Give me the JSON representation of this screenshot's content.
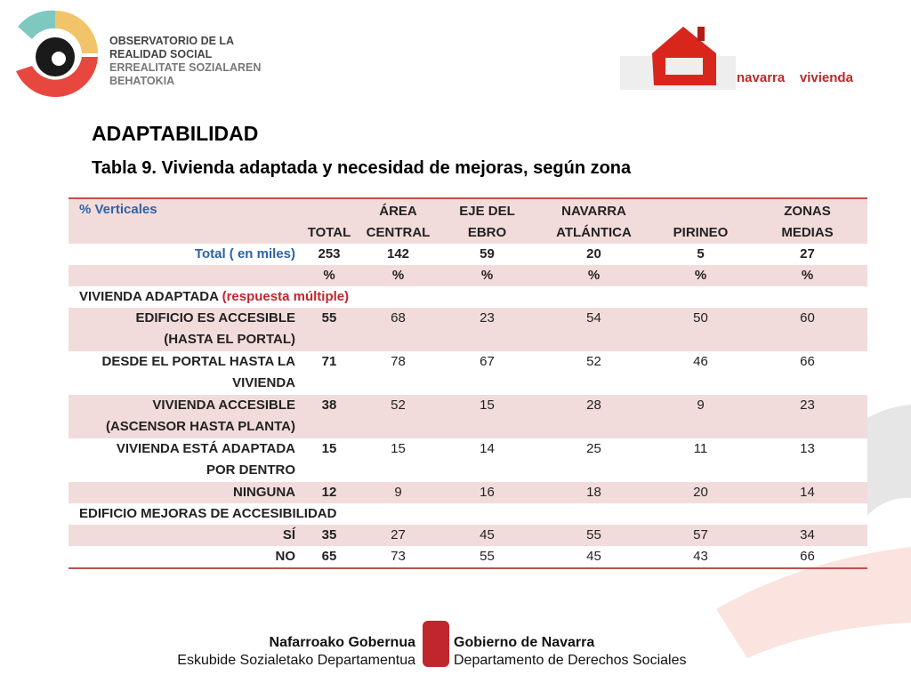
{
  "header": {
    "org_lines": [
      "OBSERVATORIO DE LA",
      "REALIDAD SOCIAL",
      "ERREALITATE SOZIALAREN",
      "BEHATOKIA"
    ],
    "brand": [
      "navarra",
      "vivienda"
    ]
  },
  "section_title": "ADAPTABILIDAD",
  "table_title": "Tabla 9. Vivienda adaptada y necesidad de mejoras, según zona",
  "table": {
    "header": [
      [
        "% Verticales"
      ],
      [
        "TOTAL"
      ],
      [
        "ÁREA",
        "CENTRAL"
      ],
      [
        "EJE DEL",
        "EBRO"
      ],
      [
        "NAVARRA",
        "ATLÁNTICA"
      ],
      [
        "PIRINEO"
      ],
      [
        "ZONAS",
        "MEDIAS"
      ]
    ],
    "rows": [
      {
        "label": [
          "Total ( en miles)"
        ],
        "values": [
          253,
          142,
          59,
          20,
          5,
          27
        ]
      },
      {
        "label": [],
        "values": [
          "%",
          "%",
          "%",
          "%",
          "%",
          "%"
        ]
      },
      {
        "section": "VIVIENDA ADAPTADA",
        "note": "(respuesta múltiple)"
      },
      {
        "label": [
          "EDIFICIO ES ACCESIBLE",
          "(HASTA EL PORTAL)"
        ],
        "values": [
          55,
          68,
          23,
          54,
          50,
          60
        ]
      },
      {
        "label": [
          "DESDE EL PORTAL HASTA LA",
          "VIVIENDA"
        ],
        "values": [
          71,
          78,
          67,
          52,
          46,
          66
        ]
      },
      {
        "label": [
          "VIVIENDA ACCESIBLE",
          "(ASCENSOR HASTA PLANTA)"
        ],
        "values": [
          38,
          52,
          15,
          28,
          9,
          23
        ]
      },
      {
        "label": [
          "VIVIENDA ESTÁ ADAPTADA",
          "POR DENTRO"
        ],
        "values": [
          15,
          15,
          14,
          25,
          11,
          13
        ]
      },
      {
        "label": [
          "NINGUNA"
        ],
        "values": [
          12,
          9,
          16,
          18,
          20,
          14
        ]
      },
      {
        "section": "EDIFICIO MEJORAS DE ACCESIBILIDAD"
      },
      {
        "label": [
          "SÍ"
        ],
        "values": [
          35,
          27,
          45,
          55,
          57,
          34
        ]
      },
      {
        "label": [
          "NO"
        ],
        "values": [
          65,
          73,
          55,
          45,
          43,
          66
        ]
      }
    ]
  },
  "footer": {
    "left": [
      "Nafarroako Gobernua",
      "Eskubide Sozialetako Departamentua"
    ],
    "right": [
      "Gobierno de Navarra",
      "Departamento de Derechos Sociales"
    ]
  }
}
